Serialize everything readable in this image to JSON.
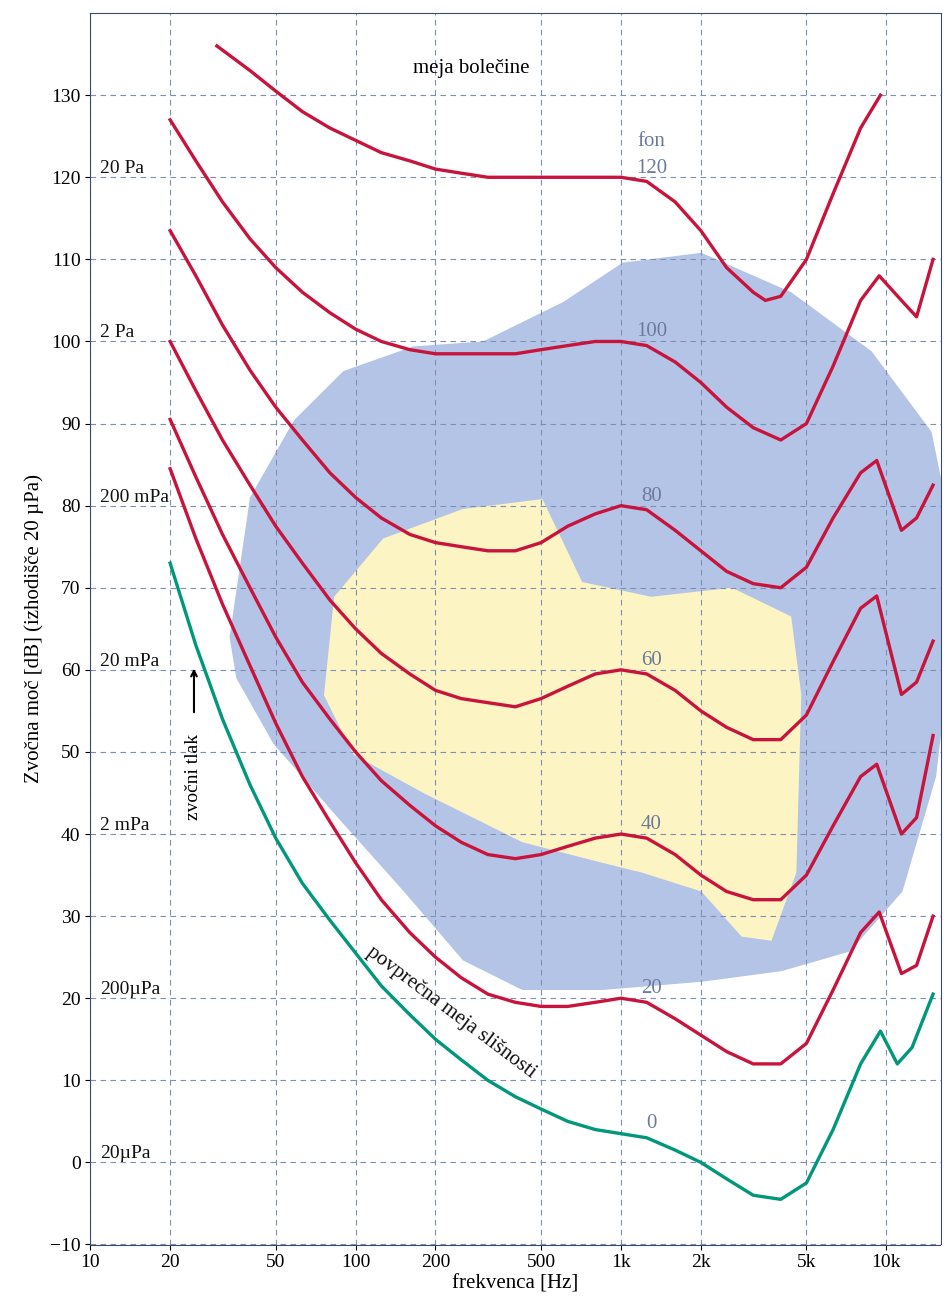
{
  "chart_data": {
    "type": "line",
    "xlabel": "frekvenca [Hz]",
    "ylabel": "Zvočna moč [dB] (izhodišče 20 µPa)",
    "log": "x",
    "grid": true,
    "xlim": [
      10,
      16000
    ],
    "ylim": [
      -10,
      140
    ],
    "xticks": [
      10,
      20,
      50,
      100,
      200,
      500,
      {
        "value": 1000,
        "label": "1k"
      },
      {
        "value": 2000,
        "label": "2k"
      },
      {
        "value": 5000,
        "label": "5k"
      },
      {
        "value": 10000,
        "label": "10k"
      }
    ],
    "yticks": [
      {
        "value": -10,
        "label": "−10"
      },
      0,
      10,
      20,
      30,
      40,
      50,
      60,
      70,
      80,
      90,
      100,
      110,
      120,
      130
    ],
    "curve_unit": "fon",
    "pain_label": "meja bolečine",
    "threshold_label": "povprečna meja slišnosti",
    "pressure_axis_label": "zvočni tlak",
    "pressure_labels": [
      {
        "value": 120,
        "label": "20 Pa"
      },
      {
        "value": 100,
        "label": "2 Pa"
      },
      {
        "value": 80,
        "label": "200 mPa"
      },
      {
        "value": 60,
        "label": "20 mPa"
      },
      {
        "value": 40,
        "label": "2 mPa"
      },
      {
        "value": 20,
        "label": "200µPa"
      },
      {
        "value": 0,
        "label": "20µPa"
      }
    ],
    "areas": [
      {
        "color": "#b3c4e6",
        "x": [
          33.5,
          40,
          58.6,
          90,
          165,
          302,
          605,
          1015,
          2010,
          4380,
          8800,
          14800,
          16700,
          16700,
          15400,
          11500,
          7300,
          4030,
          2010,
          850,
          425,
          254,
          152,
          83,
          49,
          35.5
        ],
        "values": [
          64,
          81,
          90.4,
          96.4,
          99.4,
          100,
          104.8,
          109.6,
          110.8,
          106,
          98.8,
          89,
          80.7,
          56.8,
          47,
          33,
          25.7,
          23.3,
          22,
          21,
          21,
          24.6,
          33,
          42.5,
          51,
          59
        ]
      },
      {
        "color": "#fdf4c4",
        "x": [
          76,
          83,
          127,
          254,
          506,
          714,
          1300,
          2620,
          4380,
          4780,
          4580,
          3690,
          2850,
          2010,
          1200,
          850,
          425,
          180,
          98
        ],
        "values": [
          56.9,
          68.9,
          76,
          79.6,
          80.8,
          70.7,
          68.9,
          70,
          66.5,
          57,
          35.3,
          27,
          27.5,
          33,
          35.3,
          36.5,
          39,
          45,
          49.7
        ]
      }
    ],
    "series": [
      {
        "name": "120",
        "color": "#c8143c",
        "x": [
          30,
          40,
          50,
          63,
          80,
          100,
          125,
          160,
          200,
          250,
          315,
          400,
          500,
          630,
          800,
          1000,
          1250,
          1600,
          2000,
          2500,
          3150,
          3500,
          4000,
          5000,
          6300,
          8000,
          9500
        ],
        "values": [
          136,
          133,
          130.5,
          128,
          126,
          124.5,
          123,
          122,
          121,
          120.5,
          120,
          120,
          120,
          120,
          120,
          120,
          119.5,
          117,
          113.5,
          109,
          106,
          105,
          105.5,
          110,
          118,
          126,
          130
        ]
      },
      {
        "name": "100",
        "color": "#c8143c",
        "x": [
          20,
          25,
          31.5,
          40,
          50,
          63,
          80,
          100,
          125,
          160,
          200,
          250,
          315,
          400,
          500,
          630,
          800,
          1000,
          1250,
          1600,
          2000,
          2500,
          3150,
          4000,
          5000,
          6300,
          8000,
          9400,
          11400,
          13000,
          15000
        ],
        "values": [
          127,
          122,
          117,
          112.5,
          109,
          106,
          103.5,
          101.5,
          100,
          99,
          98.5,
          98.5,
          98.5,
          98.5,
          99,
          99.5,
          100,
          100,
          99.5,
          97.5,
          95,
          92,
          89.5,
          88,
          90,
          97,
          105,
          108,
          105,
          103,
          110
        ]
      },
      {
        "name": "80",
        "color": "#c8143c",
        "x": [
          20,
          25,
          31.5,
          40,
          50,
          63,
          80,
          100,
          125,
          160,
          200,
          250,
          315,
          400,
          500,
          630,
          800,
          1000,
          1250,
          1600,
          2000,
          2500,
          3150,
          4000,
          5000,
          6300,
          8000,
          9200,
          11400,
          13000,
          15000
        ],
        "values": [
          113.5,
          108,
          102,
          96.5,
          92,
          88,
          84,
          81,
          78.5,
          76.5,
          75.5,
          75,
          74.5,
          74.5,
          75.5,
          77.5,
          79,
          80,
          79.5,
          77,
          74.5,
          72,
          70.5,
          70,
          72.5,
          78.5,
          84,
          85.5,
          77,
          78.5,
          82.5
        ]
      },
      {
        "name": "60",
        "color": "#c8143c",
        "x": [
          20,
          25,
          31.5,
          40,
          50,
          63,
          80,
          100,
          125,
          160,
          200,
          250,
          315,
          400,
          500,
          630,
          800,
          1000,
          1250,
          1600,
          2000,
          2500,
          3150,
          4000,
          5000,
          6300,
          8000,
          9200,
          11400,
          13000,
          15000
        ],
        "values": [
          100,
          94,
          88,
          82.5,
          77.5,
          73,
          68.5,
          65,
          62,
          59.5,
          57.5,
          56.5,
          56,
          55.5,
          56.5,
          58,
          59.5,
          60,
          59.5,
          57.5,
          55,
          53,
          51.5,
          51.5,
          54.5,
          61,
          67.5,
          69,
          57,
          58.5,
          63.5
        ]
      },
      {
        "name": "40",
        "color": "#c8143c",
        "x": [
          20,
          25,
          31.5,
          40,
          50,
          63,
          80,
          100,
          125,
          160,
          200,
          250,
          315,
          400,
          500,
          630,
          800,
          1000,
          1250,
          1600,
          2000,
          2500,
          3150,
          4000,
          5000,
          6300,
          8000,
          9200,
          11400,
          13000,
          15000
        ],
        "values": [
          90.5,
          83.5,
          76.5,
          70,
          64,
          58.5,
          54,
          50,
          46.5,
          43.5,
          41,
          39,
          37.5,
          37,
          37.5,
          38.5,
          39.5,
          40,
          39.5,
          37.5,
          35,
          33,
          32,
          32,
          35,
          41,
          47,
          48.5,
          40,
          42,
          52
        ]
      },
      {
        "name": "20",
        "color": "#c8143c",
        "x": [
          20,
          25,
          31.5,
          40,
          50,
          63,
          80,
          100,
          125,
          160,
          200,
          250,
          315,
          400,
          500,
          630,
          800,
          1000,
          1250,
          1600,
          2000,
          2500,
          3150,
          4000,
          5000,
          6300,
          8000,
          9400,
          11400,
          13000,
          15000
        ],
        "values": [
          84.5,
          76,
          68,
          60.5,
          53.5,
          47,
          41.5,
          36.5,
          32,
          28,
          25,
          22.5,
          20.5,
          19.5,
          19,
          19,
          19.5,
          20,
          19.5,
          17.5,
          15.5,
          13.5,
          12,
          12,
          14.5,
          21,
          28,
          30.5,
          23,
          24,
          30
        ]
      },
      {
        "name": "0",
        "color": "#00977a",
        "x": [
          20,
          25,
          31.5,
          40,
          50,
          63,
          80,
          100,
          125,
          160,
          200,
          250,
          315,
          400,
          500,
          630,
          800,
          1000,
          1250,
          1600,
          2000,
          2500,
          3150,
          4000,
          5000,
          6300,
          8000,
          9500,
          11000,
          12500,
          15000
        ],
        "values": [
          73,
          63,
          54,
          46,
          39.5,
          34,
          29.5,
          25.5,
          21.5,
          18,
          15,
          12.5,
          10,
          8,
          6.5,
          5,
          4,
          3.5,
          3,
          1.5,
          0,
          -2,
          -4,
          -4.5,
          -2.5,
          4,
          12,
          16,
          12,
          14,
          20.5
        ]
      }
    ]
  }
}
